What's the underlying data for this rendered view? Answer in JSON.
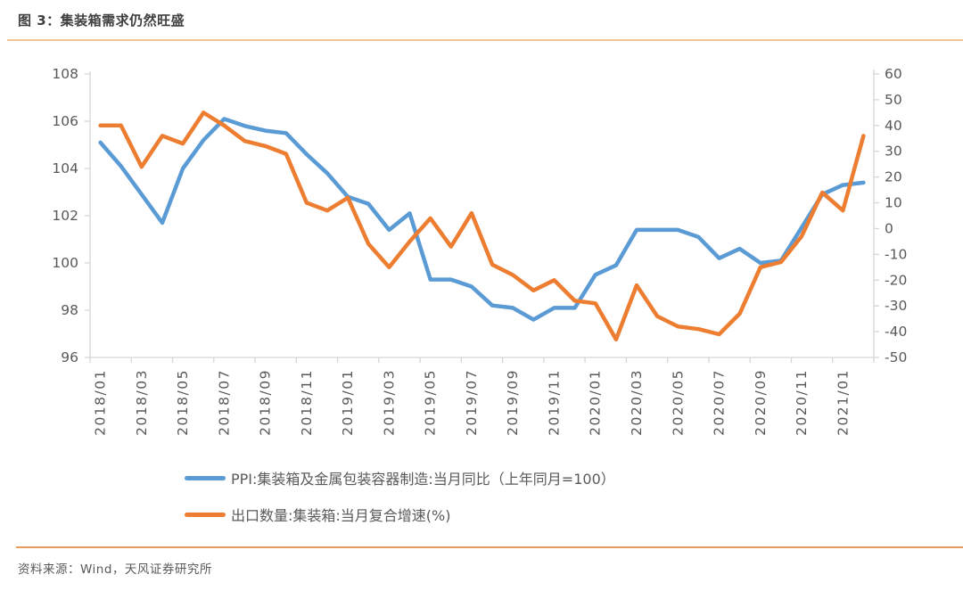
{
  "title": "图 3：集装箱需求仍然旺盛",
  "footer": {
    "source_label": "资料来源：Wind，天风证券研究所"
  },
  "colors": {
    "ppi_line": "#5b9bd5",
    "export_line": "#ed7d31",
    "axis_line": "#d6d6d6",
    "tick_text": "#595959",
    "title_text": "#3f3f3f",
    "title_rule": "#f5c495",
    "footer_rule": "#e89b5a"
  },
  "chart_data": {
    "type": "line",
    "title": "图 3：集装箱需求仍然旺盛",
    "x": [
      "2018/01",
      "2018/02",
      "2018/03",
      "2018/04",
      "2018/05",
      "2018/06",
      "2018/07",
      "2018/08",
      "2018/09",
      "2018/10",
      "2018/11",
      "2018/12",
      "2019/01",
      "2019/02",
      "2019/03",
      "2019/04",
      "2019/05",
      "2019/06",
      "2019/07",
      "2019/08",
      "2019/09",
      "2019/10",
      "2019/11",
      "2019/12",
      "2020/01",
      "2020/02",
      "2020/03",
      "2020/04",
      "2020/05",
      "2020/06",
      "2020/07",
      "2020/08",
      "2020/09",
      "2020/10",
      "2020/11",
      "2020/12",
      "2021/01",
      "2021/02"
    ],
    "x_tick_labels": [
      "2018/01",
      "2018/03",
      "2018/05",
      "2018/07",
      "2018/09",
      "2018/11",
      "2019/01",
      "2019/03",
      "2019/05",
      "2019/07",
      "2019/09",
      "2019/11",
      "2020/01",
      "2020/03",
      "2020/05",
      "2020/07",
      "2020/09",
      "2020/11",
      "2021/01"
    ],
    "left_axis": {
      "min": 96,
      "max": 108,
      "step": 2,
      "ticks": [
        108,
        106,
        104,
        102,
        100,
        98,
        96
      ]
    },
    "right_axis": {
      "min": -50,
      "max": 60,
      "step": 10,
      "ticks": [
        60,
        50,
        40,
        30,
        20,
        10,
        0,
        -10,
        -20,
        -30,
        -40,
        -50
      ]
    },
    "grid": false,
    "legend_position": "bottom",
    "series": [
      {
        "name": "PPI:集装箱及金属包装容器制造:当月同比（上年同月=100）",
        "axis": "left",
        "color": "#5b9bd5",
        "values": [
          105.1,
          104.1,
          102.9,
          101.7,
          104.0,
          105.2,
          106.1,
          105.8,
          105.6,
          105.5,
          104.6,
          103.8,
          102.8,
          102.5,
          101.4,
          102.1,
          99.3,
          99.3,
          99.0,
          98.2,
          98.1,
          97.6,
          98.1,
          98.1,
          99.5,
          99.9,
          101.4,
          101.4,
          101.4,
          101.1,
          100.2,
          100.6,
          100.0,
          100.1,
          101.5,
          102.9,
          103.3,
          103.4
        ]
      },
      {
        "name": "出口数量:集装箱:当月复合增速(%)",
        "axis": "right",
        "color": "#ed7d31",
        "values": [
          40,
          40,
          24,
          36,
          33,
          45,
          40,
          34,
          32,
          29,
          10,
          7,
          12,
          -6,
          -15,
          -5,
          4,
          -7,
          6,
          -14,
          -18,
          -24,
          -20,
          -28,
          -29,
          -43,
          -22,
          -34,
          -38,
          -39,
          -41,
          -33,
          -15,
          -13,
          -3,
          14,
          7,
          36
        ]
      }
    ]
  }
}
